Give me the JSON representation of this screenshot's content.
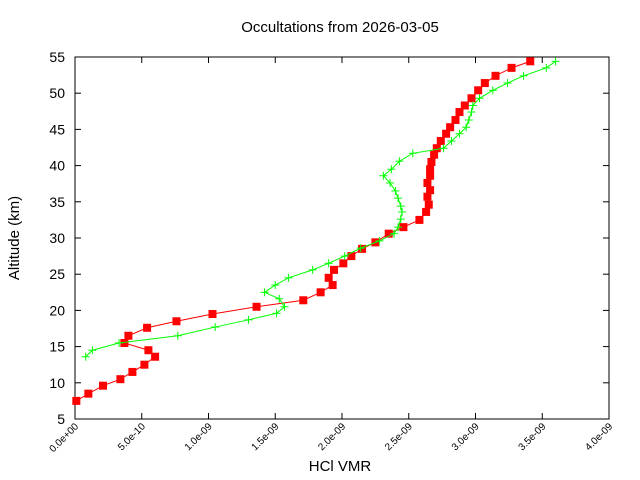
{
  "chart_data": {
    "type": "line",
    "title": "Occultations from 2026-03-05",
    "xlabel": "HCl VMR",
    "ylabel": "Altitude (km)",
    "xlim": [
      0,
      4e-09
    ],
    "ylim": [
      5,
      55
    ],
    "xticks": [
      "0.0e+00",
      "5.0e-10",
      "1.0e-09",
      "1.5e-09",
      "2.0e-09",
      "2.5e-09",
      "3.0e-09",
      "3.5e-09",
      "4.0e-09"
    ],
    "yticks": [
      "5",
      "10",
      "15",
      "20",
      "25",
      "30",
      "35",
      "40",
      "45",
      "50",
      "55"
    ],
    "grid": false,
    "legend": null,
    "series": [
      {
        "name": "red-squares",
        "color": "#ff0000",
        "marker": "square",
        "altitude_km": [
          54.4,
          53.5,
          52.4,
          51.4,
          50.4,
          49.3,
          48.3,
          47.4,
          46.3,
          45.3,
          44.4,
          43.4,
          42.4,
          41.5,
          40.5,
          39.5,
          38.6,
          37.6,
          36.6,
          35.7,
          34.6,
          33.6,
          32.5,
          31.5,
          30.6,
          29.4,
          28.5,
          27.5,
          26.5,
          25.6,
          24.5,
          23.5,
          22.5,
          21.4,
          20.5,
          19.5,
          18.5,
          17.6,
          16.5,
          15.5,
          14.5,
          13.6,
          12.5,
          11.5,
          10.5,
          9.6,
          8.5,
          7.5
        ],
        "vmr": [
          3.41e-09,
          3.27e-09,
          3.15e-09,
          3.07e-09,
          3.02e-09,
          2.97e-09,
          2.92e-09,
          2.88e-09,
          2.85e-09,
          2.81e-09,
          2.78e-09,
          2.74e-09,
          2.71e-09,
          2.69e-09,
          2.67e-09,
          2.66e-09,
          2.66e-09,
          2.64e-09,
          2.66e-09,
          2.64e-09,
          2.65e-09,
          2.63e-09,
          2.58e-09,
          2.46e-09,
          2.35e-09,
          2.25e-09,
          2.15e-09,
          2.07e-09,
          2.01e-09,
          1.94e-09,
          1.9e-09,
          1.93e-09,
          1.84e-09,
          1.71e-09,
          1.36e-09,
          1.03e-09,
          7.6e-10,
          5.4e-10,
          4e-10,
          3.7e-10,
          5.5e-10,
          6e-10,
          5.2e-10,
          4.3e-10,
          3.4e-10,
          2.1e-10,
          1e-10,
          1e-11
        ]
      },
      {
        "name": "green-crosses",
        "color": "#00ff00",
        "marker": "plus",
        "altitude_km": [
          54.4,
          53.5,
          52.4,
          51.4,
          50.4,
          49.3,
          48.3,
          47.4,
          46.3,
          45.3,
          44.4,
          43.4,
          42.4,
          41.7,
          40.6,
          39.5,
          38.6,
          37.6,
          36.5,
          35.5,
          34.4,
          33.6,
          32.6,
          31.5,
          30.6,
          29.6,
          28.6,
          27.5,
          26.5,
          25.6,
          24.5,
          23.5,
          22.5,
          21.6,
          20.5,
          19.6,
          18.7,
          17.7,
          16.5,
          15.5,
          14.5,
          13.6
        ],
        "vmr": [
          3.6e-09,
          3.53e-09,
          3.36e-09,
          3.24e-09,
          3.13e-09,
          3.03e-09,
          2.98e-09,
          2.97e-09,
          2.95e-09,
          2.93e-09,
          2.88e-09,
          2.82e-09,
          2.76e-09,
          2.53e-09,
          2.43e-09,
          2.37e-09,
          2.31e-09,
          2.36e-09,
          2.4e-09,
          2.42e-09,
          2.44e-09,
          2.45e-09,
          2.44e-09,
          2.42e-09,
          2.39e-09,
          2.28e-09,
          2.14e-09,
          2.02e-09,
          1.9e-09,
          1.78e-09,
          1.6e-09,
          1.5e-09,
          1.42e-09,
          1.53e-09,
          1.57e-09,
          1.51e-09,
          1.3e-09,
          1.05e-09,
          7.7e-10,
          3.3e-10,
          1.3e-10,
          8e-11
        ]
      }
    ]
  }
}
